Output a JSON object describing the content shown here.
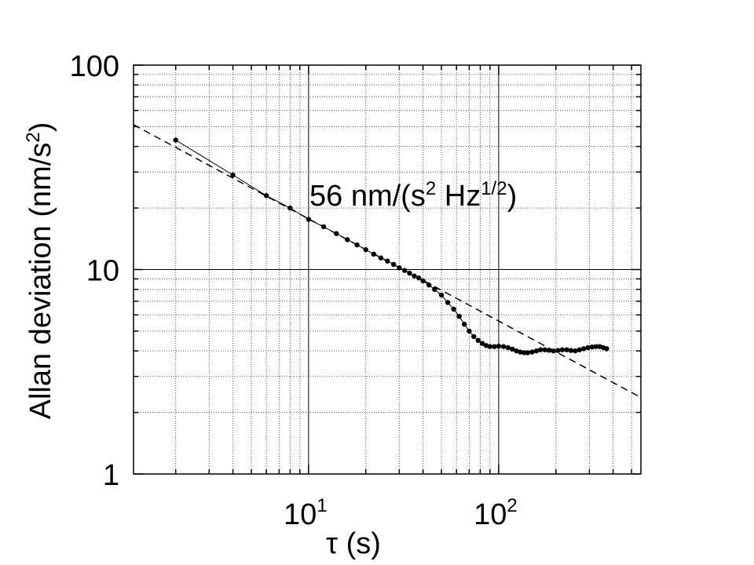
{
  "chart_data": {
    "type": "scatter",
    "xscale": "log",
    "yscale": "log",
    "xlim": [
      1.2,
      560
    ],
    "ylim": [
      1,
      100
    ],
    "grid": true,
    "x_ticks": [
      {
        "value": 10,
        "base": "10",
        "exp": "1"
      },
      {
        "value": 100,
        "base": "10",
        "exp": "2"
      }
    ],
    "y_ticks": [
      {
        "value": 1,
        "label": "1"
      },
      {
        "value": 10,
        "label": "10"
      },
      {
        "value": 100,
        "label": "100"
      }
    ],
    "xlabel": {
      "symbol": "τ",
      "rest": " (s)"
    },
    "ylabel": {
      "main": "Allan deviation (nm/s",
      "sup": "2",
      "close": ")"
    },
    "annotation": {
      "part1": "56 nm/(s",
      "sup1": "2",
      "part2": " Hz",
      "sup2": "1/2",
      "part3": ")"
    },
    "fit_line": {
      "style": "dashed",
      "coefficient": 56,
      "slope": -0.5,
      "x_range": [
        1.2,
        560
      ]
    },
    "series": [
      {
        "style": "markers",
        "x": [
          2,
          4,
          6,
          8,
          10,
          12,
          14,
          16,
          18,
          20,
          22,
          24,
          26,
          28,
          30,
          32,
          34,
          36,
          38,
          40,
          43,
          46,
          50,
          54,
          58,
          62,
          66,
          70,
          74,
          78,
          82,
          86,
          90,
          95,
          100,
          106,
          112,
          118,
          124,
          130,
          136,
          142,
          150,
          158,
          166,
          175,
          184,
          194,
          205,
          216,
          228,
          240,
          253,
          266,
          280,
          295,
          310,
          325,
          340,
          355,
          370
        ],
        "y": [
          43,
          29,
          23,
          20,
          17.6,
          16.2,
          15,
          14,
          13.2,
          12.5,
          11.9,
          11.4,
          11,
          10.6,
          10.2,
          9.9,
          9.6,
          9.3,
          9.1,
          8.8,
          8.4,
          8.0,
          7.5,
          6.9,
          6.4,
          5.9,
          5.4,
          5.0,
          4.7,
          4.5,
          4.35,
          4.25,
          4.2,
          4.2,
          4.22,
          4.2,
          4.15,
          4.08,
          4.0,
          3.95,
          3.92,
          3.92,
          3.95,
          4.0,
          4.05,
          4.05,
          4.03,
          4.0,
          4.02,
          4.05,
          4.05,
          4.02,
          4.0,
          4.05,
          4.1,
          4.15,
          4.18,
          4.2,
          4.2,
          4.15,
          4.1
        ]
      }
    ]
  }
}
